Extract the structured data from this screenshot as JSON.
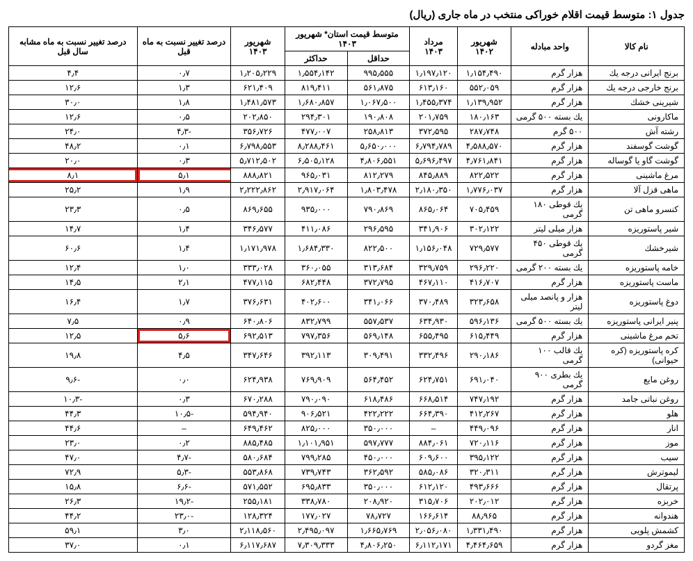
{
  "title": "جدول ۱: متوسط قیمت اقلام خوراکی منتخب در ماه جاری (ریال)",
  "headers": {
    "name": "نام کالا",
    "unit": "واحد مبادله",
    "sh1402": "شهریور ۱۴۰۲",
    "mr1403": "مرداد ۱۴۰۳",
    "province": "متوسط قیمت استان*\nشهریور ۱۴۰۳",
    "min": "حداقل",
    "max": "حداکثر",
    "sh1403": "شهریور ۱۴۰۳",
    "pct_prev": "درصد تغيير\nنسبت به ماه\nقبل",
    "pct_year": "درصد تغيير\nنسبت به ماه\nمشابه سال قبل"
  },
  "rows": [
    {
      "name": "برنج ايرانى درجه يك",
      "unit": "هزار گرم",
      "sh1402": "۱٫۱۵۴٫۴۹۰",
      "mr1403": "۱٫۱۹۷٫۱۲۰",
      "min": "۹۹۵٫۵۵۵",
      "max": "۱٫۵۵۴٫۱۴۲",
      "sh1403": "۱٫۲۰۵٫۲۲۹",
      "pct_prev": "۰٫۷",
      "pct_year": "۴٫۴"
    },
    {
      "name": "برنج خارجى درجه يك",
      "unit": "هزار گرم",
      "sh1402": "۵۵۲٫۰۵۹",
      "mr1403": "۶۱۳٫۱۶۰",
      "min": "۵۶۱٫۸۷۵",
      "max": "۸۱۹٫۴۱۱",
      "sh1403": "۶۲۱٫۴۰۹",
      "pct_prev": "۱٫۳",
      "pct_year": "۱۲٫۶"
    },
    {
      "name": "شيرينى خشك",
      "unit": "هزار گرم",
      "sh1402": "۱٫۱۳۹٫۹۵۲",
      "mr1403": "۱٫۴۵۵٫۳۷۴",
      "min": "۱٫۰۶۷٫۵۰۰",
      "max": "۱٫۶۸۰٫۸۵۷",
      "sh1403": "۱٫۴۸۱٫۵۷۳",
      "pct_prev": "۱٫۸",
      "pct_year": "۳۰٫۰"
    },
    {
      "name": "ماكارونى",
      "unit": "يك بسته ۵۰۰ گرمى",
      "sh1402": "۱۸۰٫۱۶۳",
      "mr1403": "۲۰۱٫۷۵۹",
      "min": "۱۹۰٫۸۰۸",
      "max": "۲۹۴٫۳۰۱",
      "sh1403": "۲۰۲٫۸۵۰",
      "pct_prev": "۰٫۵",
      "pct_year": "۱۲٫۶"
    },
    {
      "name": "رشته آش",
      "unit": "۵۰۰ گرم",
      "sh1402": "۲۸۷٫۷۴۸",
      "mr1403": "۳۷۲٫۵۹۵",
      "min": "۲۵۸٫۸۱۳",
      "max": "۴۷۷٫۰۰۷",
      "sh1403": "۳۵۶٫۷۲۶",
      "pct_prev": "-۴٫۳",
      "pct_year": "۲۴٫۰"
    },
    {
      "name": "گوشت گوسفند",
      "unit": "هزار گرم",
      "sh1402": "۴٫۵۸۸٫۵۷۰",
      "mr1403": "۶٫۷۹۴٫۷۸۹",
      "min": "۵٫۶۵۰٫۰۰۰",
      "max": "۸٫۲۸۸٫۴۶۱",
      "sh1403": "۶٫۷۹۸٫۵۵۳",
      "pct_prev": "۰٫۱",
      "pct_year": "۴۸٫۲"
    },
    {
      "name": "گوشت گاو يا گوساله",
      "unit": "هزار گرم",
      "sh1402": "۴٫۷۶۱٫۸۴۱",
      "mr1403": "۵٫۶۹۶٫۴۹۷",
      "min": "۴٫۸۰۶٫۵۵۱",
      "max": "۶٫۵۰۵٫۱۲۸",
      "sh1403": "۵٫۷۱۲٫۵۰۲",
      "pct_prev": "۰٫۳",
      "pct_year": "۲۰٫۰"
    },
    {
      "name": "مرغ ماشينى",
      "unit": "هزار گرم",
      "sh1402": "۸۲۲٫۵۲۲",
      "mr1403": "۸۴۵٫۸۸۹",
      "min": "۸۱۲٫۲۷۹",
      "max": "۹۶۵٫۰۳۱",
      "sh1403": "۸۸۸٫۸۲۱",
      "pct_prev": "۵٫۱",
      "pct_year": "۸٫۱",
      "highlight": "row"
    },
    {
      "name": "ماهى قزل آلا",
      "unit": "هزار گرم",
      "sh1402": "۱٫۷۷۶٫۰۳۷",
      "mr1403": "۲٫۱۸۰٫۳۵۰",
      "min": "۱٫۸۰۳٫۴۷۸",
      "max": "۲٫۹۱۷٫۰۶۴",
      "sh1403": "۲٫۲۲۲٫۸۶۲",
      "pct_prev": "۱٫۹",
      "pct_year": "۲۵٫۲"
    },
    {
      "name": "كنسرو ماهى تن",
      "unit": "يك قوطى ۱۸۰ گرمى",
      "sh1402": "۷۰۵٫۴۵۹",
      "mr1403": "۸۶۵٫۰۶۴",
      "min": "۷۹۰٫۸۶۹",
      "max": "۹۳۵٫۰۰۰",
      "sh1403": "۸۶۹٫۶۵۵",
      "pct_prev": "۰٫۵",
      "pct_year": "۲۳٫۳"
    },
    {
      "name": "شير پاستوريزه",
      "unit": "هزار ميلى ليتر",
      "sh1402": "۳۰۲٫۱۲۲",
      "mr1403": "۳۴۱٫۹۰۶",
      "min": "۲۹۶٫۵۹۵",
      "max": "۴۱۱٫۰۸۶",
      "sh1403": "۳۴۶٫۵۷۷",
      "pct_prev": "۱٫۴",
      "pct_year": "۱۴٫۷"
    },
    {
      "name": "شيرخشك",
      "unit": "يك قوطى ۴۵۰ گرمى",
      "sh1402": "۷۲۹٫۵۷۷",
      "mr1403": "۱٫۱۵۶٫۰۴۸",
      "min": "۸۲۲٫۵۰۰",
      "max": "۱٫۶۸۴٫۳۳۰",
      "sh1403": "۱٫۱۷۱٫۹۷۸",
      "pct_prev": "۱٫۴",
      "pct_year": "۶۰٫۶"
    },
    {
      "name": "خامه پاستوريزه",
      "unit": "يك بسته ۲۰۰ گرمى",
      "sh1402": "۲۹۶٫۲۲۰",
      "mr1403": "۳۲۹٫۷۵۹",
      "min": "۳۱۳٫۶۸۴",
      "max": "۳۶۰٫۰۵۵",
      "sh1403": "۳۳۳٫۰۲۸",
      "pct_prev": "۱٫۰",
      "pct_year": "۱۲٫۴"
    },
    {
      "name": "ماست پاستوريزه",
      "unit": "هزار گرم",
      "sh1402": "۴۱۶٫۷۰۷",
      "mr1403": "۴۶۷٫۱۱۰",
      "min": "۳۷۲٫۷۹۵",
      "max": "۶۸۲٫۴۴۸",
      "sh1403": "۴۷۷٫۱۱۵",
      "pct_prev": "۲٫۱",
      "pct_year": "۱۴٫۵"
    },
    {
      "name": "دوغ پاستوريزه",
      "unit": "هزار و پانصد ميلى ليتر",
      "sh1402": "۳۲۳٫۶۵۸",
      "mr1403": "۳۷۰٫۴۸۹",
      "min": "۳۴۱٫۰۶۶",
      "max": "۴۰۲٫۶۰۰",
      "sh1403": "۳۷۶٫۶۳۱",
      "pct_prev": "۱٫۷",
      "pct_year": "۱۶٫۴"
    },
    {
      "name": "پنير ايرانى پاستوريزه",
      "unit": "يك بسته ۵۰۰ گرمى",
      "sh1402": "۵۹۶٫۱۳۶",
      "mr1403": "۶۳۴٫۹۳۰",
      "min": "۵۵۷٫۵۳۷",
      "max": "۸۳۲٫۷۹۹",
      "sh1403": "۶۴۰٫۸۰۶",
      "pct_prev": "۰٫۹",
      "pct_year": "۷٫۵"
    },
    {
      "name": "تخم مرغ ماشينى",
      "unit": "هزار گرم",
      "sh1402": "۶۱۵٫۴۴۹",
      "mr1403": "۶۵۵٫۴۹۵",
      "min": "۵۶۹٫۱۴۸",
      "max": "۷۹۷٫۳۵۶",
      "sh1403": "۶۹۲٫۵۱۳",
      "pct_prev": "۵٫۶",
      "pct_year": "۱۲٫۵",
      "highlight": "cell"
    },
    {
      "name": "كره پاستوريزه (كره حيوانى)",
      "unit": "يك قالب ۱۰۰ گرمى",
      "sh1402": "۲۹۰٫۱۸۶",
      "mr1403": "۳۳۲٫۴۹۶",
      "min": "۳۰۹٫۴۹۱",
      "max": "۳۹۲٫۱۱۳",
      "sh1403": "۳۴۷٫۶۴۶",
      "pct_prev": "۴٫۵",
      "pct_year": "۱۹٫۸"
    },
    {
      "name": "روغن مايع",
      "unit": "يك بطرى ۹۰۰ گرمى",
      "sh1402": "۶۹۱٫۰۴۰",
      "mr1403": "۶۲۴٫۷۵۱",
      "min": "۵۶۴٫۴۵۲",
      "max": "۷۶۹٫۹۰۹",
      "sh1403": "۶۲۴٫۹۳۸",
      "pct_prev": "۰٫۰",
      "pct_year": "-۹٫۶"
    },
    {
      "name": "روغن نباتى جامد",
      "unit": "هزار گرم",
      "sh1402": "۷۴۷٫۱۹۲",
      "mr1403": "۶۶۸٫۵۱۴",
      "min": "۶۱۸٫۴۸۶",
      "max": "۷۹۰٫۰۹۰",
      "sh1403": "۶۷۰٫۲۸۸",
      "pct_prev": "۰٫۳",
      "pct_year": "-۱۰٫۳"
    },
    {
      "name": "هلو",
      "unit": "هزار گرم",
      "sh1402": "۴۱۲٫۲۶۷",
      "mr1403": "۶۶۴٫۳۹۰",
      "min": "۴۲۲٫۲۲۲",
      "max": "۹۰۶٫۵۲۱",
      "sh1403": "۵۹۴٫۹۴۰",
      "pct_prev": "-۱۰٫۵",
      "pct_year": "۴۴٫۳"
    },
    {
      "name": "انار",
      "unit": "هزار گرم",
      "sh1402": "۴۴۹٫۰۹۶",
      "mr1403": "–",
      "min": "۳۵۰٫۰۰۰",
      "max": "۸۲۵٫۰۰۰",
      "sh1403": "۶۴۹٫۴۶۲",
      "pct_prev": "–",
      "pct_year": "۴۴٫۶"
    },
    {
      "name": "موز",
      "unit": "هزار گرم",
      "sh1402": "۷۲۰٫۱۱۶",
      "mr1403": "۸۸۴٫۰۶۱",
      "min": "۵۹۷٫۷۷۷",
      "max": "۱٫۱۰۱٫۹۵۱",
      "sh1403": "۸۸۵٫۴۸۵",
      "pct_prev": "۰٫۲",
      "pct_year": "۲۳٫۰"
    },
    {
      "name": "سيب",
      "unit": "هزار گرم",
      "sh1402": "۳۹۵٫۱۲۲",
      "mr1403": "۶۰۹٫۶۰۰",
      "min": "۴۵۰٫۰۰۰",
      "max": "۷۹۹٫۲۸۵",
      "sh1403": "۵۸۰٫۶۸۴",
      "pct_prev": "-۴٫۷",
      "pct_year": "۴۷٫۰"
    },
    {
      "name": "ليموترش",
      "unit": "هزار گرم",
      "sh1402": "۳۲۰٫۳۱۱",
      "mr1403": "۵۸۵٫۰۸۶",
      "min": "۳۶۲٫۵۹۲",
      "max": "۷۳۹٫۷۴۳",
      "sh1403": "۵۵۳٫۸۶۸",
      "pct_prev": "-۵٫۳",
      "pct_year": "۷۲٫۹"
    },
    {
      "name": "پرتقال",
      "unit": "هزار گرم",
      "sh1402": "۴۹۳٫۶۶۶",
      "mr1403": "۶۱۲٫۱۲۰",
      "min": "۳۵۰٫۰۰۰",
      "max": "۶۹۵٫۸۳۳",
      "sh1403": "۵۷۱٫۵۵۲",
      "pct_prev": "-۶٫۶",
      "pct_year": "۱۵٫۸"
    },
    {
      "name": "خربزه",
      "unit": "هزار گرم",
      "sh1402": "۲۰۲٫۰۱۲",
      "mr1403": "۳۱۵٫۷۰۶",
      "min": "۲۰۸٫۹۲۰",
      "max": "۳۳۸٫۷۸۰",
      "sh1403": "۲۵۵٫۱۸۱",
      "pct_prev": "-۱۹٫۲",
      "pct_year": "۲۶٫۳"
    },
    {
      "name": "هندوانه",
      "unit": "هزار گرم",
      "sh1402": "۸۸٫۹۶۵",
      "mr1403": "۱۶۶٫۶۱۴",
      "min": "۷۸٫۷۲۷",
      "max": "۱۷۷٫۰۲۷",
      "sh1403": "۱۲۸٫۳۲۴",
      "pct_prev": "-۲۳٫۰",
      "pct_year": "۴۴٫۲"
    },
    {
      "name": "كشمش پلويى",
      "unit": "هزار گرم",
      "sh1402": "۱٫۳۳۱٫۴۹۰",
      "mr1403": "۲٫۰۵۶٫۰۸۰",
      "min": "۱٫۶۶۵٫۷۶۹",
      "max": "۲٫۴۹۵٫۰۹۷",
      "sh1403": "۲٫۱۱۸٫۵۶۰",
      "pct_prev": "۳٫۰",
      "pct_year": "۵۹٫۱"
    },
    {
      "name": "مغز گردو",
      "unit": "هزار گرم",
      "sh1402": "۴٫۴۶۴٫۶۵۹",
      "mr1403": "۶٫۱۱۲٫۱۷۱",
      "min": "۴٫۸۰۶٫۲۵۰",
      "max": "۷٫۳۰۹٫۳۳۳",
      "sh1403": "۶٫۱۱۷٫۶۸۷",
      "pct_prev": "۰٫۱",
      "pct_year": "۳۷٫۰"
    }
  ],
  "styling": {
    "highlight_color": "#d92020",
    "highlight_border_width": 3,
    "font_size": 12,
    "border_color": "#000000",
    "background_color": "#ffffff",
    "text_color": "#000000"
  }
}
